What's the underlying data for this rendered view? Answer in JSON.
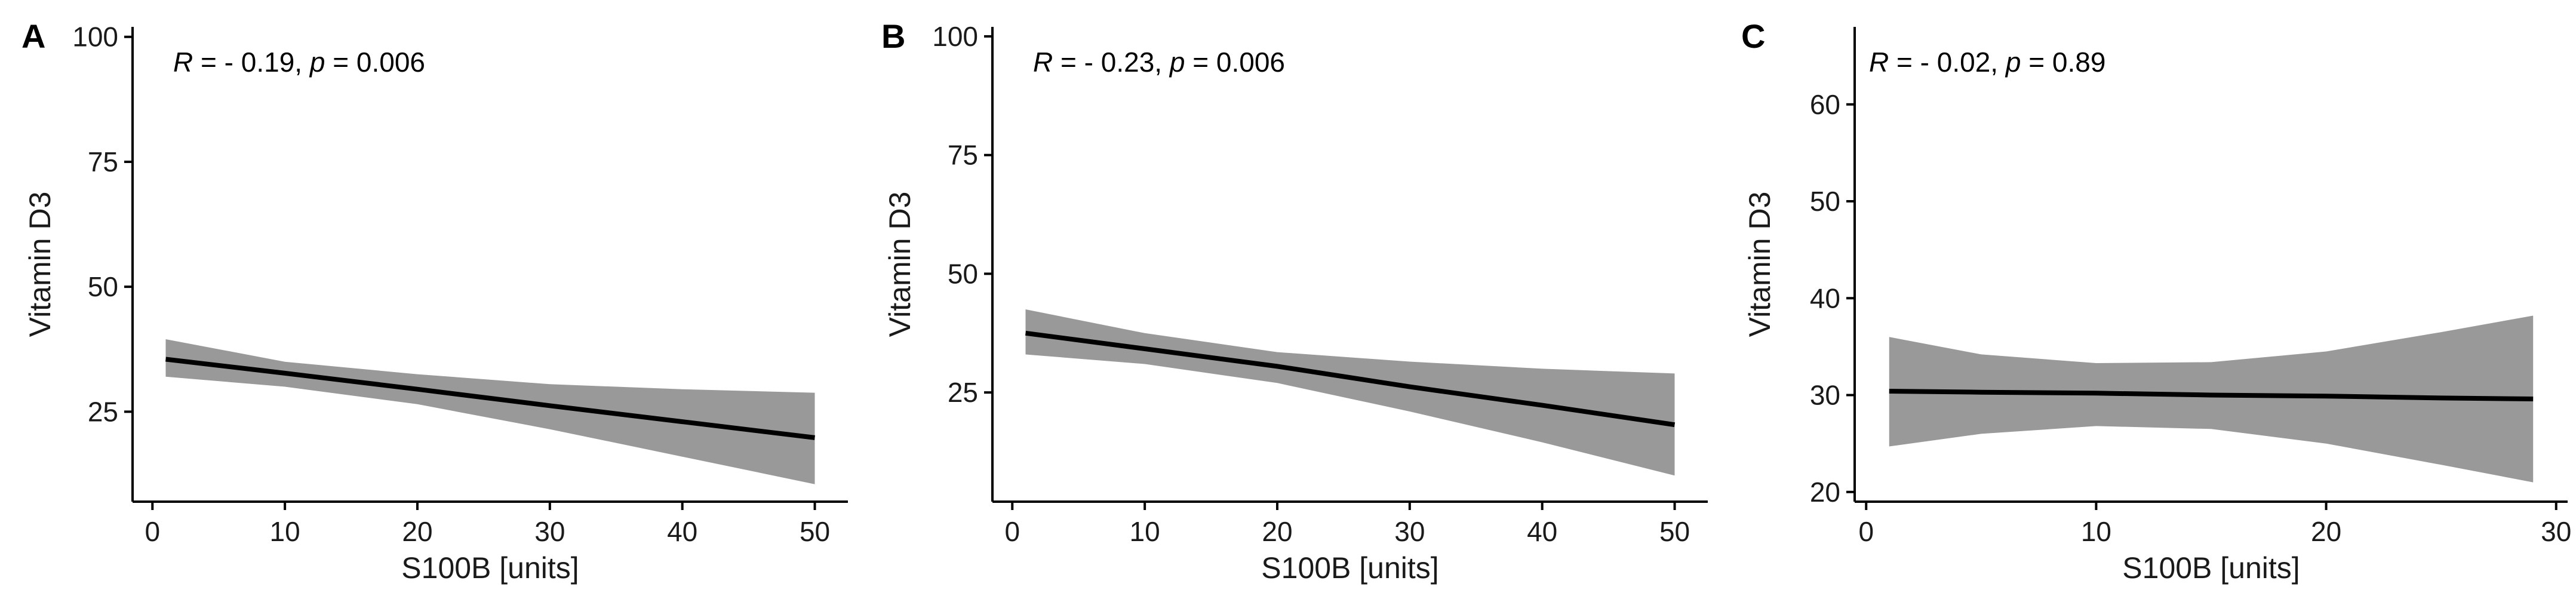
{
  "chart_data": [
    {
      "type": "line",
      "panel_label": "A",
      "annotation": {
        "r_symbol": "R",
        "r_text": " = - 0.19, ",
        "p_symbol": "p",
        "p_text": " = 0.006"
      },
      "xlabel": "S100B [units]",
      "ylabel": "Vitamin D3",
      "xlim": [
        -1.5,
        52.5
      ],
      "ylim": [
        7,
        102
      ],
      "xticks": [
        0,
        10,
        20,
        30,
        40,
        50
      ],
      "yticks": [
        25,
        50,
        75,
        100
      ],
      "series": [
        {
          "x": [
            1,
            10,
            20,
            30,
            40,
            50
          ],
          "y": [
            35.5,
            32.7,
            29.5,
            26.2,
            23.0,
            19.8
          ],
          "ci_lower": [
            32.0,
            30.0,
            26.5,
            21.5,
            16.0,
            10.5
          ],
          "ci_upper": [
            39.5,
            35.0,
            32.5,
            30.5,
            29.5,
            28.8
          ]
        }
      ],
      "colors": {
        "line": "#000000",
        "band": "#999999"
      }
    },
    {
      "type": "line",
      "panel_label": "B",
      "annotation": {
        "r_symbol": "R",
        "r_text": " = - 0.23, ",
        "p_symbol": "p",
        "p_text": " = 0.006"
      },
      "xlabel": "S100B [units]",
      "ylabel": "Vitamin D3",
      "xlim": [
        -1.5,
        52.5
      ],
      "ylim": [
        2,
        102
      ],
      "xticks": [
        0,
        10,
        20,
        30,
        40,
        50
      ],
      "yticks": [
        25,
        50,
        75,
        100
      ],
      "series": [
        {
          "x": [
            1,
            10,
            20,
            30,
            40,
            50
          ],
          "y": [
            37.5,
            34.2,
            30.5,
            26.2,
            22.3,
            18.2
          ],
          "ci_lower": [
            33.0,
            31.0,
            27.0,
            21.0,
            14.5,
            7.5
          ],
          "ci_upper": [
            42.5,
            37.5,
            33.5,
            31.5,
            30.0,
            29.0
          ]
        }
      ],
      "colors": {
        "line": "#000000",
        "band": "#999999"
      }
    },
    {
      "type": "line",
      "panel_label": "C",
      "annotation": {
        "r_symbol": "R",
        "r_text": " = - 0.02, ",
        "p_symbol": "p",
        "p_text": " = 0.89"
      },
      "xlabel": "S100B [units]",
      "ylabel": "Vitamin D3",
      "xlim": [
        -0.5,
        30.5
      ],
      "ylim": [
        19,
        68
      ],
      "xticks": [
        0,
        10,
        20,
        30
      ],
      "yticks": [
        20,
        30,
        40,
        50,
        60
      ],
      "series": [
        {
          "x": [
            1,
            5,
            10,
            15,
            20,
            25,
            29
          ],
          "y": [
            30.4,
            30.3,
            30.2,
            30.0,
            29.9,
            29.7,
            29.6
          ],
          "ci_lower": [
            24.7,
            26.0,
            26.8,
            26.5,
            25.0,
            22.8,
            21.0
          ],
          "ci_upper": [
            36.0,
            34.2,
            33.3,
            33.4,
            34.5,
            36.5,
            38.2
          ]
        }
      ],
      "colors": {
        "line": "#000000",
        "band": "#999999"
      }
    }
  ]
}
